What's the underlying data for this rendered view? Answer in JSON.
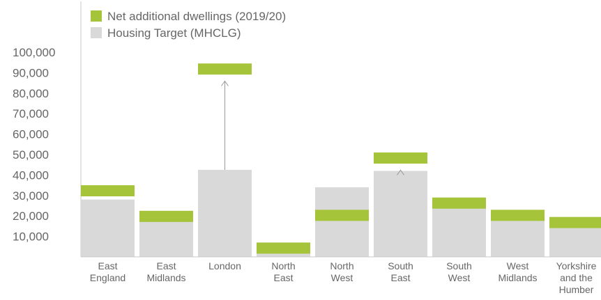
{
  "chart_data": {
    "type": "bar",
    "title": "",
    "xlabel": "",
    "ylabel": "",
    "ylim": [
      0,
      100000
    ],
    "yticks": [
      {
        "value": 10000,
        "label": "10,000"
      },
      {
        "value": 20000,
        "label": "20,000"
      },
      {
        "value": 30000,
        "label": "30,000"
      },
      {
        "value": 40000,
        "label": "40,000"
      },
      {
        "value": 50000,
        "label": "50,000"
      },
      {
        "value": 60000,
        "label": "60,000"
      },
      {
        "value": 70000,
        "label": "70,000"
      },
      {
        "value": 80000,
        "label": "80,000"
      },
      {
        "value": 90000,
        "label": "90,000"
      },
      {
        "value": 100000,
        "label": "100,000"
      }
    ],
    "legend": {
      "placement": "top-left",
      "entries": [
        {
          "name": "Net additional dwellings (2019/20)",
          "color": "#a6c43a"
        },
        {
          "name": "Housing Target (MHCLG)",
          "color": "#d9d9d9"
        }
      ]
    },
    "categories": [
      {
        "lines": [
          "East",
          "England"
        ]
      },
      {
        "lines": [
          "East",
          "Midlands"
        ]
      },
      {
        "lines": [
          "London"
        ]
      },
      {
        "lines": [
          "North",
          "East"
        ]
      },
      {
        "lines": [
          "North",
          "West"
        ]
      },
      {
        "lines": [
          "South",
          "East"
        ]
      },
      {
        "lines": [
          "South",
          "West"
        ]
      },
      {
        "lines": [
          "West",
          "Midlands"
        ]
      },
      {
        "lines": [
          "Yorkshire",
          "and the",
          "Humber"
        ]
      }
    ],
    "series": [
      {
        "name": "Housing Target (MHCLG)",
        "color": "#d9d9d9",
        "values": [
          28000,
          19500,
          42500,
          3800,
          34000,
          42000,
          26000,
          20000,
          17000
        ]
      },
      {
        "name": "Net additional dwellings (2019/20)",
        "color": "#a6c43a",
        "values": [
          35000,
          22500,
          94500,
          7000,
          23000,
          51000,
          29000,
          23000,
          19500
        ]
      }
    ],
    "arrows": [
      {
        "category_index": 2,
        "from": 42500,
        "to": 92000
      },
      {
        "category_index": 5,
        "from": 42000,
        "to": 48500
      }
    ]
  }
}
